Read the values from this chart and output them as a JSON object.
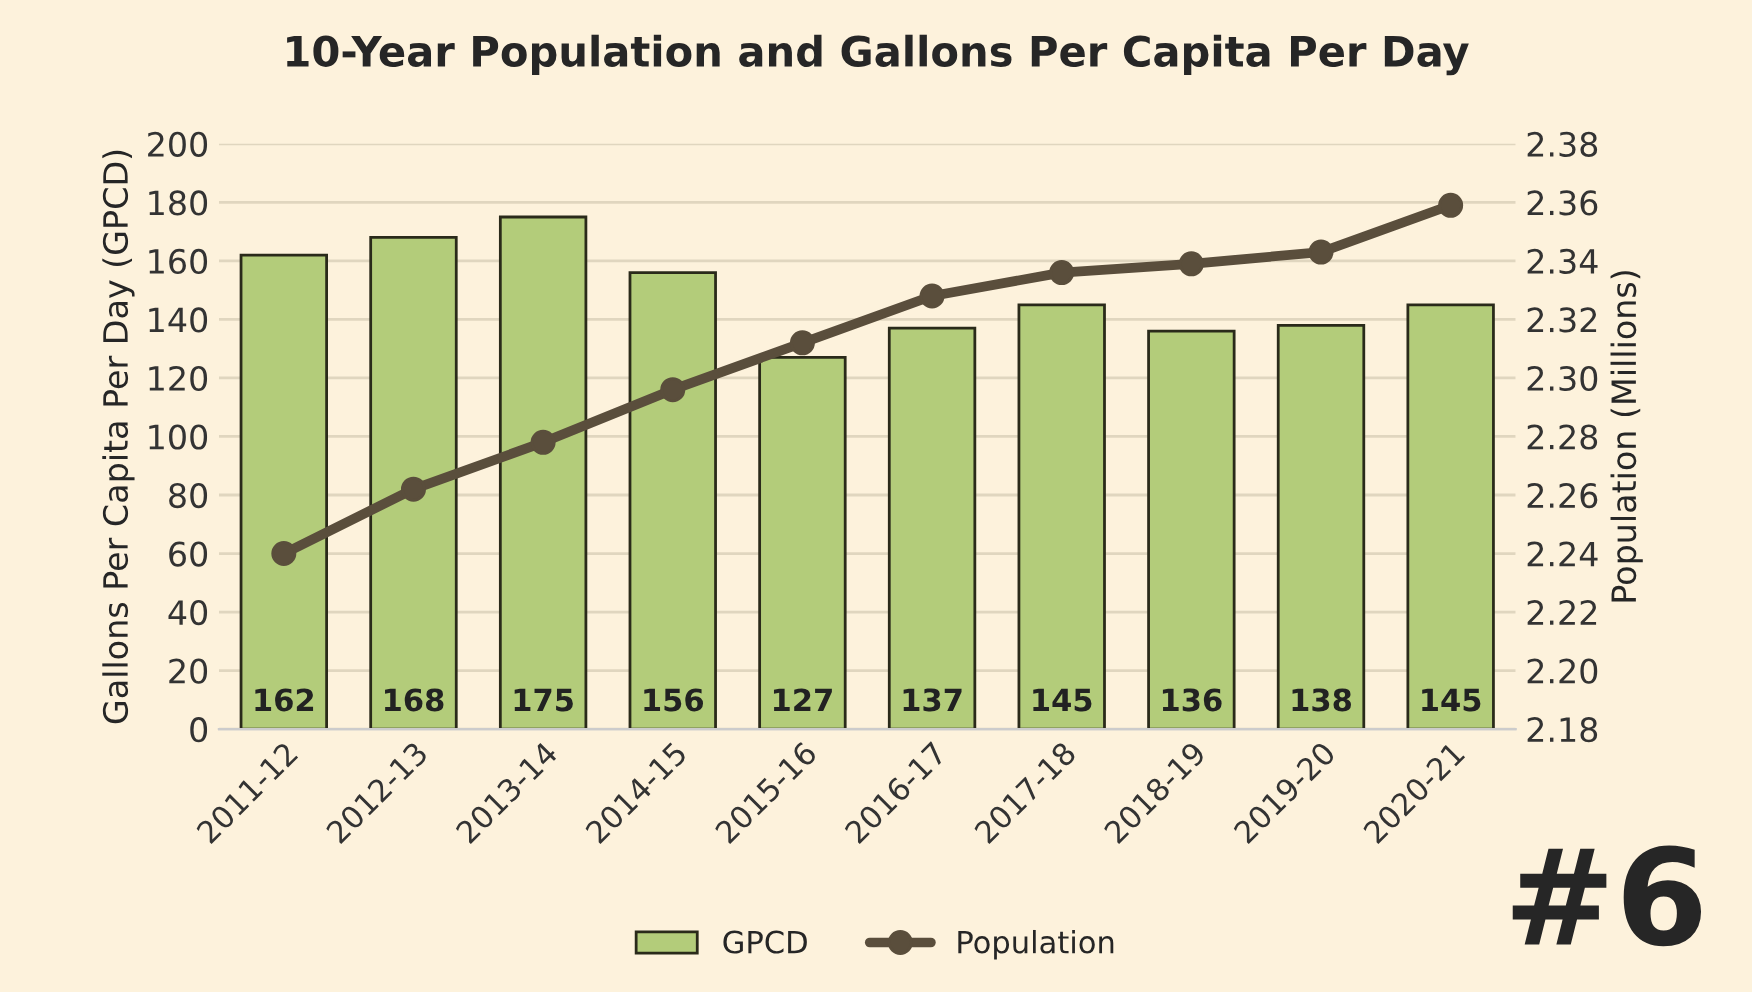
{
  "chart_data": {
    "type": "bar",
    "title": "10-Year Population and Gallons Per Capita Per Day",
    "ylabel": "Gallons Per Capita Per Day (GPCD)",
    "y2label": "Population (Millions)",
    "categories": [
      "2011-12",
      "2012-13",
      "2013-14",
      "2014-15",
      "2015-16",
      "2016-17",
      "2017-18",
      "2018-19",
      "2019-20",
      "2020-21"
    ],
    "series": [
      {
        "name": "GPCD",
        "color": "#b3cc7a",
        "values": [
          162,
          168,
          175,
          156,
          127,
          137,
          145,
          136,
          138,
          145
        ],
        "value_labels": [
          "162",
          "168",
          "175",
          "156",
          "127",
          "137",
          "145",
          "136",
          "138",
          "145"
        ]
      },
      {
        "name": "Population",
        "type": "line",
        "axis": "y2",
        "color": "#5a4e3c",
        "marker": "circle",
        "values": [
          2.24,
          2.262,
          2.278,
          2.296,
          2.312,
          2.328,
          2.336,
          2.339,
          2.343,
          2.359
        ]
      }
    ],
    "ylim": [
      0,
      200
    ],
    "yticks": [
      0,
      20,
      40,
      60,
      80,
      100,
      120,
      140,
      160,
      180,
      200
    ],
    "y2lim": [
      2.18,
      2.38
    ],
    "y2ticks": [
      {
        "value": 2.18,
        "label": "2.18"
      },
      {
        "value": 2.2,
        "label": "2.20"
      },
      {
        "value": 2.22,
        "label": "2.22"
      },
      {
        "value": 2.24,
        "label": "2.24"
      },
      {
        "value": 2.26,
        "label": "2.26"
      },
      {
        "value": 2.28,
        "label": "2.28"
      },
      {
        "value": 2.3,
        "label": "2.30"
      },
      {
        "value": 2.32,
        "label": "2.32"
      },
      {
        "value": 2.34,
        "label": "2.34"
      },
      {
        "value": 2.36,
        "label": "2.36"
      },
      {
        "value": 2.38,
        "label": "2.38"
      }
    ],
    "grid": "y",
    "legend": "bottom",
    "annotations": [
      "#6"
    ]
  }
}
